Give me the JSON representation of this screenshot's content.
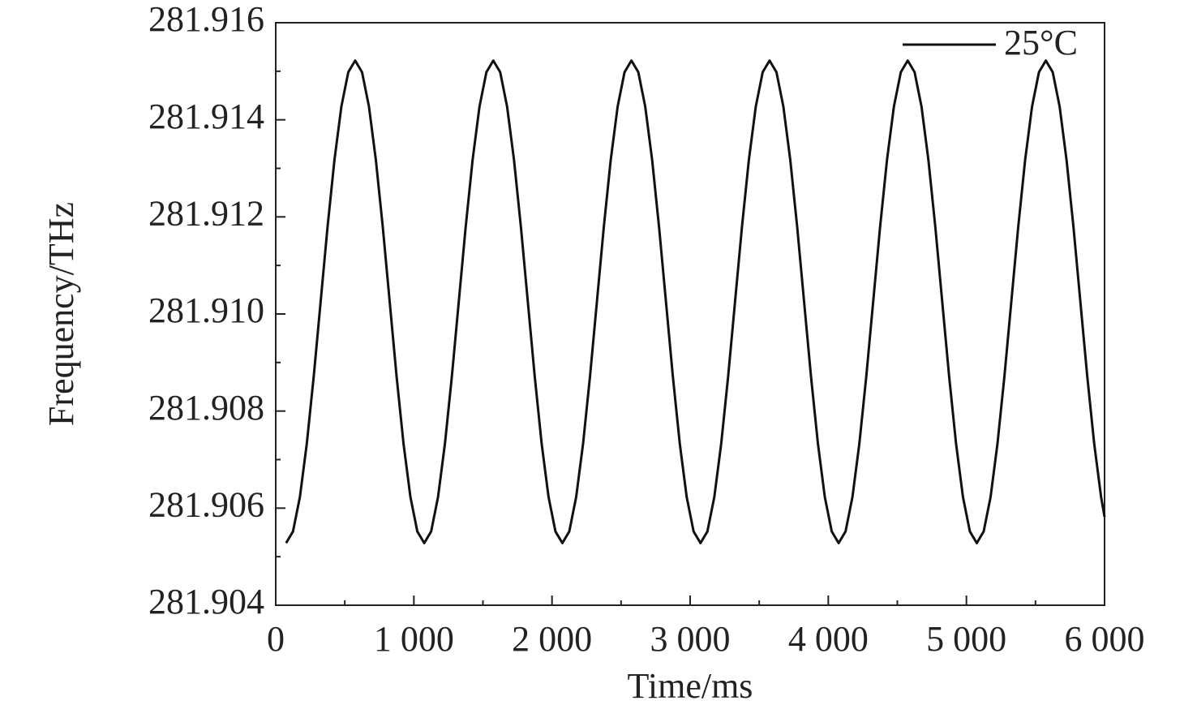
{
  "chart_data": {
    "type": "line",
    "xlabel": "Time/ms",
    "ylabel": "Frequency/THz",
    "x": [
      75,
      125,
      175,
      225,
      275,
      325,
      375,
      425,
      475,
      525,
      575,
      625,
      675,
      725,
      775,
      825,
      875,
      925,
      975,
      1025,
      1075,
      1125,
      1175,
      1225,
      1275,
      1325,
      1375,
      1425,
      1475,
      1525,
      1575,
      1625,
      1675,
      1725,
      1775,
      1825,
      1875,
      1925,
      1975,
      2025,
      2075,
      2125,
      2175,
      2225,
      2275,
      2325,
      2375,
      2425,
      2475,
      2525,
      2575,
      2625,
      2675,
      2725,
      2775,
      2825,
      2875,
      2925,
      2975,
      3025,
      3075,
      3125,
      3175,
      3225,
      3275,
      3325,
      3375,
      3425,
      3475,
      3525,
      3575,
      3625,
      3675,
      3725,
      3775,
      3825,
      3875,
      3925,
      3975,
      4025,
      4075,
      4125,
      4175,
      4225,
      4275,
      4325,
      4375,
      4425,
      4475,
      4525,
      4575,
      4625,
      4675,
      4725,
      4775,
      4825,
      4875,
      4925,
      4975,
      5025,
      5075,
      5125,
      5175,
      5225,
      5275,
      5325,
      5375,
      5425,
      5475,
      5525,
      5575,
      5625,
      5675,
      5725,
      5775,
      5825,
      5875,
      5925,
      5975,
      6000
    ],
    "series": [
      {
        "name": "25°C",
        "color": "#111111",
        "values": [
          281.90528,
          281.90552,
          281.90623,
          281.90733,
          281.90871,
          281.91025,
          281.91179,
          281.91317,
          281.91427,
          281.91498,
          281.91522,
          281.91498,
          281.91427,
          281.91317,
          281.91179,
          281.91025,
          281.90871,
          281.90733,
          281.90623,
          281.90552,
          281.90528,
          281.90552,
          281.90623,
          281.90733,
          281.90871,
          281.91025,
          281.91179,
          281.91317,
          281.91427,
          281.91498,
          281.91522,
          281.91498,
          281.91427,
          281.91317,
          281.91179,
          281.91025,
          281.90871,
          281.90733,
          281.90623,
          281.90552,
          281.90528,
          281.90552,
          281.90623,
          281.90733,
          281.90871,
          281.91025,
          281.91179,
          281.91317,
          281.91427,
          281.91498,
          281.91522,
          281.91498,
          281.91427,
          281.91317,
          281.91179,
          281.91025,
          281.90871,
          281.90733,
          281.90623,
          281.90552,
          281.90528,
          281.90552,
          281.90623,
          281.90733,
          281.90871,
          281.91025,
          281.91179,
          281.91317,
          281.91427,
          281.91498,
          281.91522,
          281.91498,
          281.91427,
          281.91317,
          281.91179,
          281.91025,
          281.90871,
          281.90733,
          281.90623,
          281.90552,
          281.90528,
          281.90552,
          281.90623,
          281.90733,
          281.90871,
          281.91025,
          281.91179,
          281.91317,
          281.91427,
          281.91498,
          281.91522,
          281.91498,
          281.91427,
          281.91317,
          281.91179,
          281.91025,
          281.90871,
          281.90733,
          281.90623,
          281.90552,
          281.90528,
          281.90552,
          281.90623,
          281.90733,
          281.90871,
          281.91025,
          281.91179,
          281.91317,
          281.91427,
          281.91498,
          281.91522,
          281.91498,
          281.91427,
          281.91317,
          281.91179,
          281.91025,
          281.90871,
          281.90733,
          281.90623,
          281.90582
        ]
      }
    ],
    "xlim": [
      0,
      6000
    ],
    "xticks": [
      0,
      {
        "value": 1000,
        "label": "1 000"
      },
      {
        "value": 2000,
        "label": "2 000"
      },
      {
        "value": 3000,
        "label": "3 000"
      },
      {
        "value": 4000,
        "label": "4 000"
      },
      {
        "value": 5000,
        "label": "5 000"
      },
      {
        "value": 6000,
        "label": "6 000"
      }
    ],
    "xminorticks": [
      500,
      1500,
      2500,
      3500,
      4500,
      5500
    ],
    "ylim": [
      281.904,
      281.916
    ],
    "yticks": [
      281.904,
      281.906,
      281.908,
      {
        "value": 281.91,
        "label": "281.910"
      },
      281.912,
      281.914,
      281.916
    ],
    "yminorticks": [
      281.905,
      281.907,
      281.909,
      281.911,
      281.913,
      281.915
    ],
    "grid": false,
    "legend": "upper right"
  }
}
